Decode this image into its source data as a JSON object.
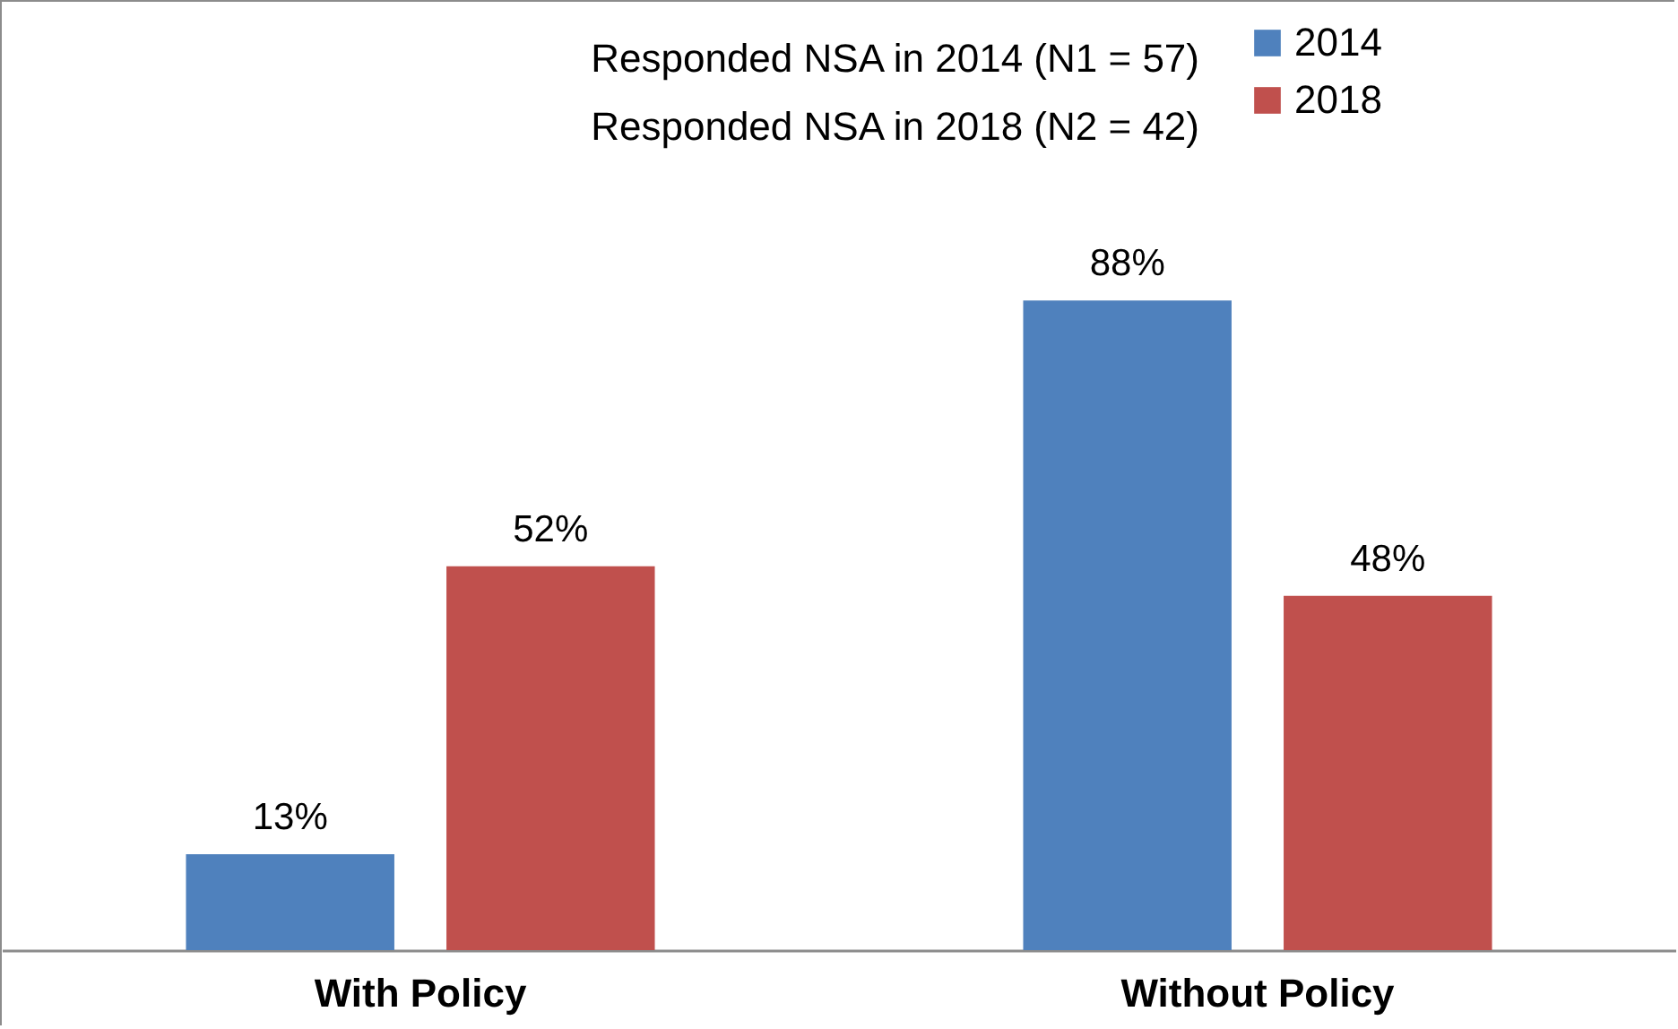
{
  "chart_data": {
    "type": "bar",
    "categories": [
      "With Policy",
      "Without Policy"
    ],
    "series": [
      {
        "name": "2014",
        "color": "#4f81bd",
        "values": [
          13,
          88
        ],
        "value_labels": [
          "13%",
          "88%"
        ]
      },
      {
        "name": "2018",
        "color": "#c0504d",
        "values": [
          52,
          48
        ],
        "value_labels": [
          "52%",
          "48%"
        ]
      }
    ],
    "annotations": [
      "Responded NSA in 2014 (N1 = 57)",
      "Responded NSA in 2018 (N2 = 42)"
    ],
    "legend": "top right",
    "grid": false
  }
}
